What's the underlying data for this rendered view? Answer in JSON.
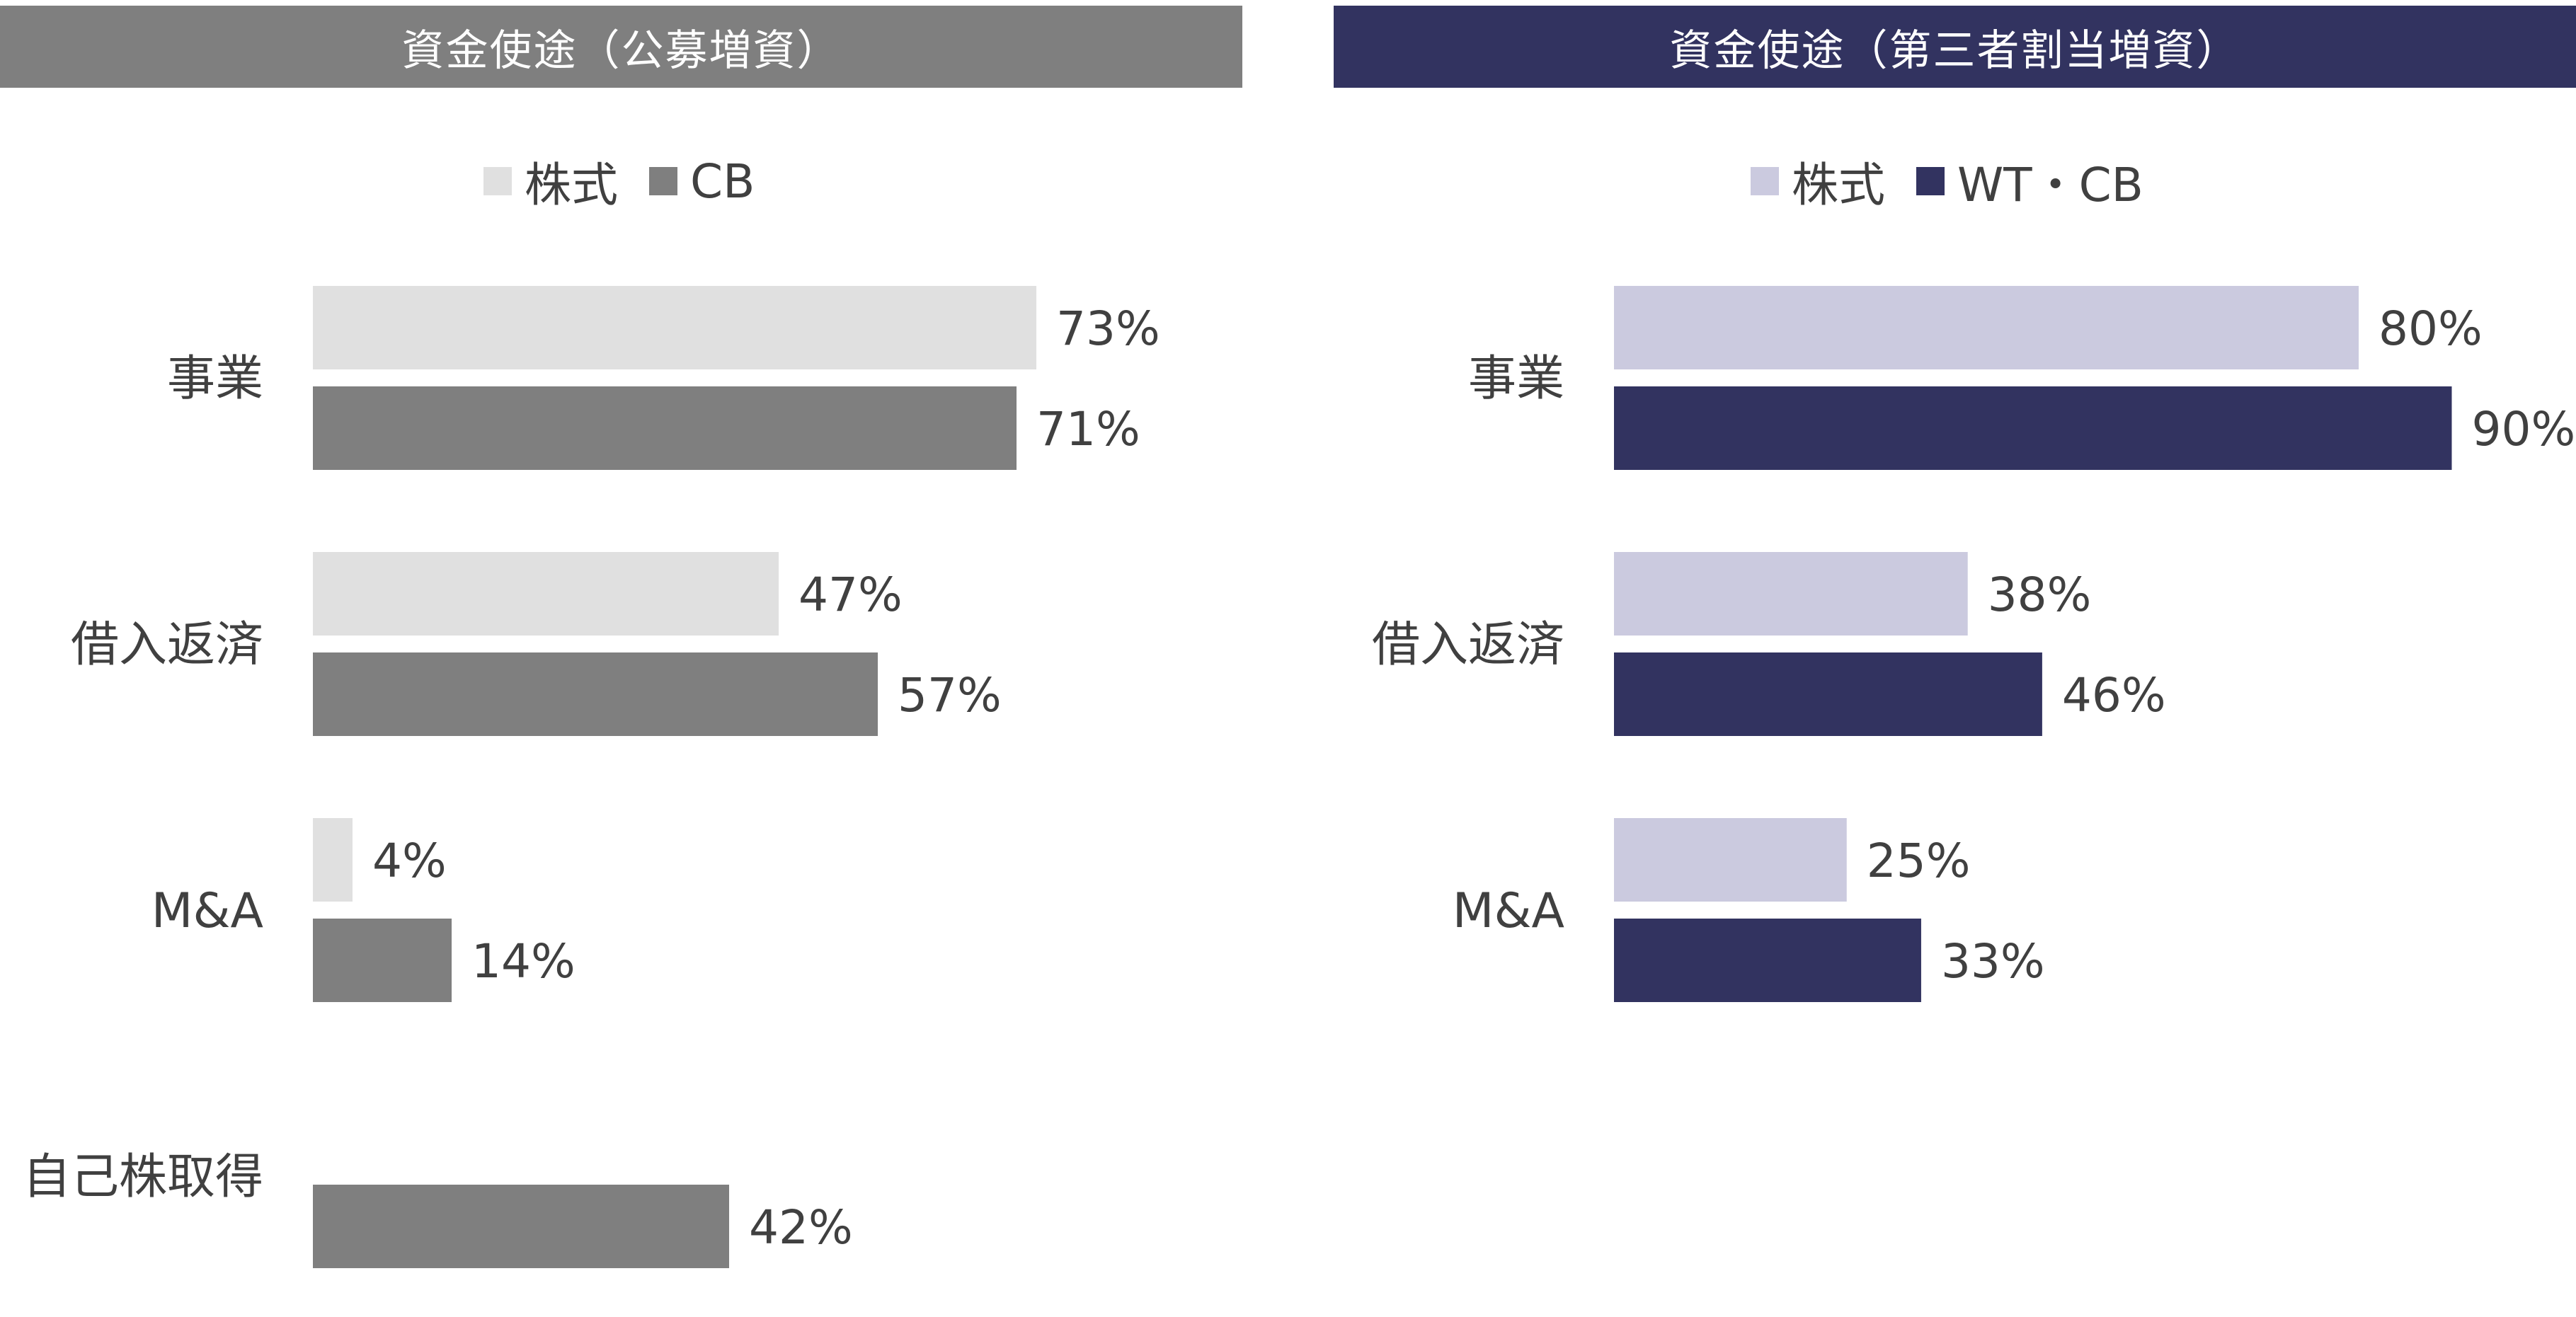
{
  "panels": [
    {
      "title": "資金使途（公募増資）",
      "title_bg": "#7f7f7f"
    },
    {
      "title": "資金使途（第三者割当増資）",
      "title_bg": "#323360"
    }
  ],
  "chart_data": [
    {
      "type": "bar",
      "orientation": "horizontal",
      "title": "資金使途（公募増資）",
      "categories": [
        "事業",
        "借入返済",
        "M&A",
        "自己株取得"
      ],
      "series": [
        {
          "name": "株式",
          "color": "#e0e0e0",
          "values": [
            73,
            47,
            4,
            null
          ],
          "labels": [
            "73%",
            "47%",
            "4%",
            ""
          ]
        },
        {
          "name": "CB",
          "color": "#7f7f7f",
          "values": [
            71,
            57,
            14,
            42
          ],
          "labels": [
            "71%",
            "57%",
            "14%",
            "42%"
          ]
        }
      ],
      "xlim": [
        0,
        100
      ],
      "unit": "%",
      "legend_position": "top",
      "grid": false
    },
    {
      "type": "bar",
      "orientation": "horizontal",
      "title": "資金使途（第三者割当増資）",
      "categories": [
        "事業",
        "借入返済",
        "M&A"
      ],
      "series": [
        {
          "name": "株式",
          "color": "#cbcadf",
          "values": [
            80,
            38,
            25
          ],
          "labels": [
            "80%",
            "38%",
            "25%"
          ]
        },
        {
          "name": "WT・CB",
          "color": "#323360",
          "values": [
            90,
            46,
            33
          ],
          "labels": [
            "90%",
            "46%",
            "33%"
          ]
        }
      ],
      "xlim": [
        0,
        100
      ],
      "unit": "%",
      "legend_position": "top",
      "grid": false
    }
  ]
}
